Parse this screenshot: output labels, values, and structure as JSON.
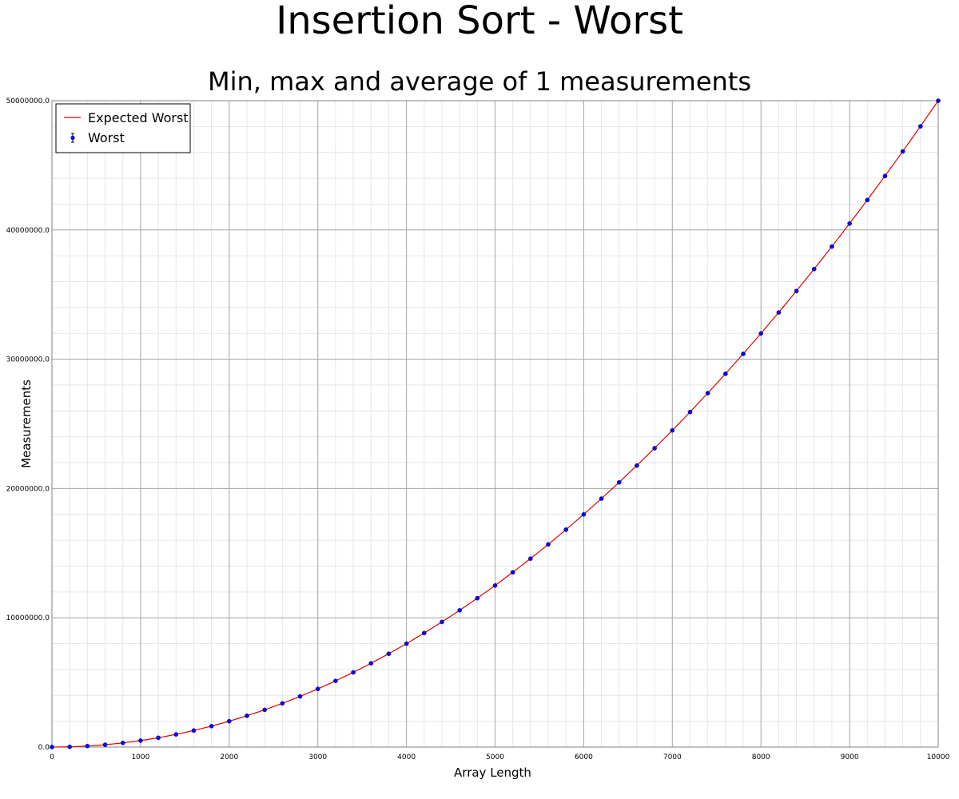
{
  "title": "Insertion Sort - Worst",
  "subtitle": "Min, max and average of 1 measurements",
  "chart_data": {
    "type": "line",
    "title": "Insertion Sort - Worst",
    "subtitle": "Min, max and average of 1 measurements",
    "xlabel": "Array Length",
    "ylabel": "Measurements",
    "xlim": [
      0,
      10000
    ],
    "ylim": [
      0,
      50000000
    ],
    "grid": true,
    "legend_position": "top-left",
    "x_ticks": [
      "0",
      "1000",
      "2000",
      "3000",
      "4000",
      "5000",
      "6000",
      "7000",
      "8000",
      "9000",
      "10000"
    ],
    "y_ticks": [
      "0.0",
      "10000000.0",
      "20000000.0",
      "30000000.0",
      "40000000.0",
      "50000000.0"
    ],
    "x": [
      0,
      200,
      400,
      600,
      800,
      1000,
      1200,
      1400,
      1600,
      1800,
      2000,
      2200,
      2400,
      2600,
      2800,
      3000,
      3200,
      3400,
      3600,
      3800,
      4000,
      4200,
      4400,
      4600,
      4800,
      5000,
      5200,
      5400,
      5600,
      5800,
      6000,
      6200,
      6400,
      6600,
      6800,
      7000,
      7200,
      7400,
      7600,
      7800,
      8000,
      8200,
      8400,
      8600,
      8800,
      9000,
      9200,
      9400,
      9600,
      9800,
      10000
    ],
    "series": [
      {
        "name": "Expected Worst",
        "style": "line",
        "color": "#e00000",
        "values": [
          0,
          20000,
          80000,
          180000,
          320000,
          500000,
          720000,
          980000,
          1280000,
          1620000,
          2000000,
          2420000,
          2880000,
          3380000,
          3920000,
          4500000,
          5120000,
          5780000,
          6480000,
          7220000,
          8000000,
          8820000,
          9680000,
          10580000,
          11520000,
          12500000,
          13520000,
          14580000,
          15680000,
          16820000,
          18000000,
          19220000,
          20480000,
          21780000,
          23120000,
          24500000,
          25920000,
          27380000,
          28880000,
          30420000,
          32000000,
          33620000,
          35280000,
          36980000,
          38720000,
          40500000,
          42320000,
          44180000,
          46080000,
          48020000,
          50000000
        ]
      },
      {
        "name": "Worst",
        "style": "points-errorbar",
        "color": "#0000ff",
        "values": [
          0,
          19900,
          79800,
          179700,
          319600,
          499500,
          719400,
          979300,
          1279200,
          1619100,
          1999000,
          2418900,
          2878800,
          3378700,
          3918600,
          4498500,
          5118400,
          5778300,
          6478200,
          7218100,
          7998000,
          8817900,
          9677800,
          10577700,
          11517600,
          12497500,
          13517400,
          14577300,
          15677200,
          16817100,
          17997000,
          19216900,
          20476800,
          21776700,
          23116600,
          24496500,
          25916400,
          27376300,
          28876200,
          30416100,
          31996000,
          33615900,
          35275800,
          36975700,
          38715600,
          40495500,
          42315400,
          44175300,
          46075200,
          48015100,
          49995000
        ]
      }
    ]
  }
}
